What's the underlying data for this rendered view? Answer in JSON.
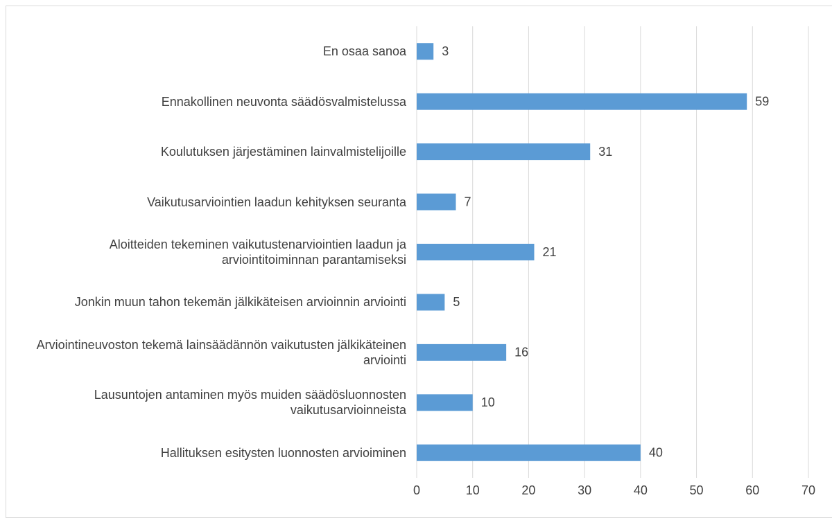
{
  "chart_data": {
    "type": "barh",
    "categories": [
      "En osaa sanoa",
      "Ennakollinen neuvonta säädösvalmistelussa",
      "Koulutuksen järjestäminen lainvalmistelijoille",
      "Vaikutusarviointien laadun kehityksen seuranta",
      "Aloitteiden tekeminen vaikutustenarviointien laadun ja arviointitoiminnan parantamiseksi",
      "Jonkin muun tahon tekemän jälkikäteisen arvioinnin arviointi",
      "Arviointineuvoston tekemä lainsäädännön vaikutusten jälkikäteinen arviointi",
      "Lausuntojen antaminen myös muiden säädösluonnosten vaikutusarvioinneista",
      "Hallituksen esitysten luonnosten arvioiminen"
    ],
    "values": [
      3,
      59,
      31,
      7,
      21,
      5,
      16,
      10,
      40
    ],
    "color": "#5b9bd5",
    "xlim": [
      0,
      70
    ],
    "xticks": [
      0,
      10,
      20,
      30,
      40,
      50,
      60,
      70
    ],
    "grid": true
  }
}
